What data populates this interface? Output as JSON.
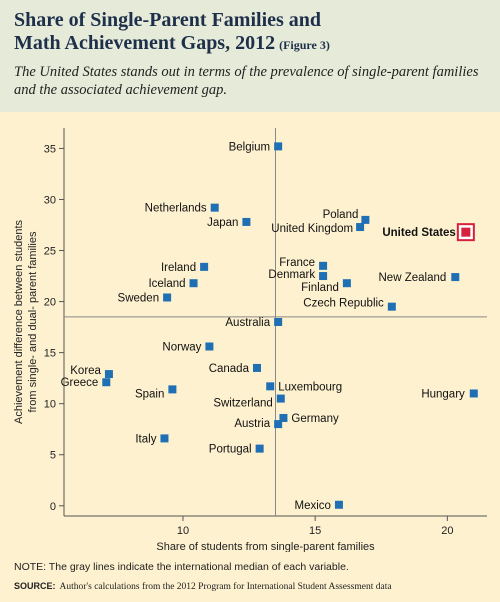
{
  "header": {
    "title_line1": "Share of Single-Parent Families and",
    "title_line2": "Math Achievement Gaps, 2012",
    "figure_label": "(Figure 3)",
    "subtitle": "The United States stands out in terms of the prevalence of single-parent families and the associated achievement gap."
  },
  "chart_data": {
    "type": "scatter",
    "xlabel": "Share of students from single-parent families",
    "ylabel_line1": "Achievement difference between students",
    "ylabel_line2": "from single- and dual- parent families",
    "xlim": [
      5.5,
      21.5
    ],
    "ylim": [
      -1,
      37
    ],
    "xticks": [
      10,
      15,
      20
    ],
    "yticks": [
      0,
      5,
      10,
      15,
      20,
      25,
      30,
      35
    ],
    "median_x": 13.5,
    "median_y": 18.5,
    "colors": {
      "point": "#1f6fb4",
      "highlight": "#d6203d",
      "median_line": "#8a8a8a"
    },
    "points": [
      {
        "label": "Belgium",
        "x": 13.6,
        "y": 35.2
      },
      {
        "label": "Netherlands",
        "x": 11.2,
        "y": 29.2
      },
      {
        "label": "Japan",
        "x": 12.4,
        "y": 27.8
      },
      {
        "label": "Poland",
        "x": 16.9,
        "y": 28.0
      },
      {
        "label": "United Kingdom",
        "x": 16.7,
        "y": 27.3
      },
      {
        "label": "United States",
        "x": 20.7,
        "y": 26.8,
        "highlight": true
      },
      {
        "label": "Ireland",
        "x": 10.8,
        "y": 23.4
      },
      {
        "label": "France",
        "x": 15.3,
        "y": 23.5
      },
      {
        "label": "Denmark",
        "x": 15.3,
        "y": 22.5
      },
      {
        "label": "New Zealand",
        "x": 20.3,
        "y": 22.4
      },
      {
        "label": "Iceland",
        "x": 10.4,
        "y": 21.8
      },
      {
        "label": "Finland",
        "x": 16.2,
        "y": 21.8
      },
      {
        "label": "Sweden",
        "x": 9.4,
        "y": 20.4
      },
      {
        "label": "Czech Republic",
        "x": 17.9,
        "y": 19.5
      },
      {
        "label": "Australia",
        "x": 13.6,
        "y": 18.0
      },
      {
        "label": "Norway",
        "x": 11.0,
        "y": 15.6
      },
      {
        "label": "Canada",
        "x": 12.8,
        "y": 13.5
      },
      {
        "label": "Korea",
        "x": 7.2,
        "y": 12.9
      },
      {
        "label": "Greece",
        "x": 7.1,
        "y": 12.1
      },
      {
        "label": "Luxembourg",
        "x": 13.3,
        "y": 11.7
      },
      {
        "label": "Spain",
        "x": 9.6,
        "y": 11.4
      },
      {
        "label": "Hungary",
        "x": 21.0,
        "y": 11.0
      },
      {
        "label": "Switzerland",
        "x": 13.7,
        "y": 10.5
      },
      {
        "label": "Germany",
        "x": 13.8,
        "y": 8.6
      },
      {
        "label": "Austria",
        "x": 13.6,
        "y": 8.0
      },
      {
        "label": "Italy",
        "x": 9.3,
        "y": 6.6
      },
      {
        "label": "Portugal",
        "x": 12.9,
        "y": 5.6
      },
      {
        "label": "Mexico",
        "x": 15.9,
        "y": 0.1
      }
    ]
  },
  "footer": {
    "note": "NOTE: The gray lines indicate the international median of each variable.",
    "source_label": "SOURCE:",
    "source_text": "Author's calculations from the 2012 Program for International Student Assessment data"
  }
}
